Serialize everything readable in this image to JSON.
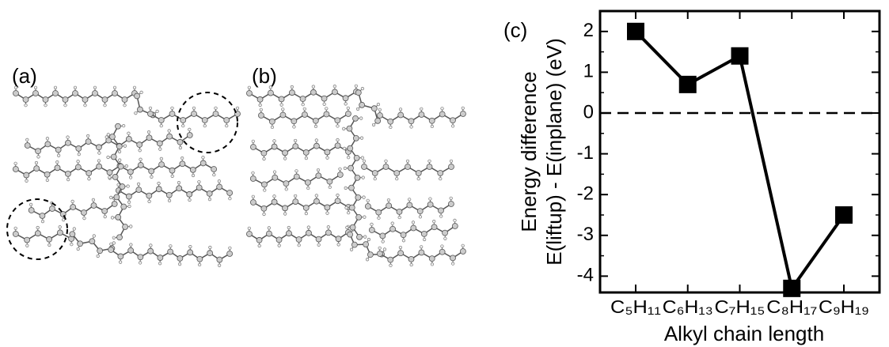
{
  "panel_labels": [
    "(a)",
    "(b)",
    "(c)"
  ],
  "chart_data": {
    "type": "line",
    "y_label": [
      "Energy difference",
      "E(liftup) - E(inplane) (eV)"
    ],
    "x_label": "Alkyl chain length",
    "categories": [
      "C₅H₁₁",
      "C₆H₁₃",
      "C₇H₁₅",
      "C₈H₁₇",
      "C₉H₁₉"
    ],
    "values": [
      2.0,
      0.7,
      1.4,
      -4.3,
      -2.5
    ],
    "color": "#000000",
    "ylim": [
      -4.4,
      2.5
    ],
    "yticks": [
      -4,
      -3,
      -2,
      -1,
      0,
      1,
      2
    ],
    "reference_line": 0
  }
}
